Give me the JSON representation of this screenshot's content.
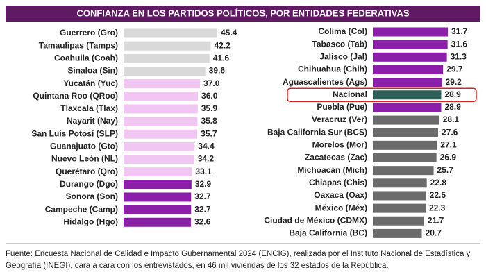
{
  "title": "CONFIANZA EN LOS PARTIDOS POLÍTICOS, POR ENTIDADES FEDERATIVAS",
  "source": "Fuente: Encuesta Nacional de Calidad e Impacto Gubernamental 2024 (ENCIG), realizada por el Instituto Nacional de Estadística y Geografía (INEGI), cara a cara con los entrevistados, en 46 mil viviendas de los 32 estados de la República.",
  "chart_data": [
    {
      "type": "hbar",
      "categories": [
        "Guerrero (Gro)",
        "Tamaulipas (Tamps)",
        "Coahuila (Coah)",
        "Sinaloa (Sin)",
        "Yucatán (Yuc)",
        "Quintana Roo (QRoo)",
        "Tlaxcala (Tlax)",
        "Nayarit (Nay)",
        "San Luis Potosí (SLP)",
        "Guanajuato (Gto)",
        "Nuevo León (NL)",
        "Querétaro (Qro)",
        "Durango (Dgo)",
        "Sonora (Son)",
        "Campeche (Camp)",
        "Hidalgo (Hgo)"
      ],
      "values": [
        45.4,
        42.2,
        41.6,
        39.6,
        37.0,
        36.0,
        35.9,
        35.8,
        35.7,
        34.4,
        34.2,
        33.1,
        32.9,
        32.7,
        32.7,
        32.6
      ],
      "value_labels": [
        "45.4",
        "42.2",
        "41.6",
        "39.6",
        "37.0",
        "36.0",
        "35.9",
        "35.8",
        "35.7",
        "34.4",
        "34.2",
        "33.1",
        "32.9",
        "32.7",
        "32.7",
        "32.6"
      ],
      "colors": [
        "#d9d9d9",
        "#d9d9d9",
        "#d9d9d9",
        "#d9d9d9",
        "#f2c6f2",
        "#f2c6f2",
        "#f2c6f2",
        "#f2c6f2",
        "#f2c6f2",
        "#f2c6f2",
        "#f2c6f2",
        "#f2c6f2",
        "#8b1fa9",
        "#8b1fa9",
        "#8b1fa9",
        "#8b1fa9"
      ]
    },
    {
      "type": "hbar",
      "categories": [
        "Colima (Col)",
        "Tabasco (Tab)",
        "Jalisco (Jal)",
        "Chihuahua (Chih)",
        "Aguascalientes (Ags)",
        "Nacional",
        "Puebla (Pue)",
        "Veracruz (Ver)",
        "Baja California Sur (BCS)",
        "Morelos (Mor)",
        "Zacatecas (Zac)",
        "Michoacán (Mich)",
        "Chiapas (Chis)",
        "Oaxaca (Oax)",
        "México (Méx)",
        "Ciudad de México (CDMX)",
        "Baja California (BC)"
      ],
      "values": [
        31.7,
        31.6,
        31.3,
        29.7,
        29.2,
        28.9,
        28.9,
        28.1,
        27.6,
        27.1,
        26.9,
        25.7,
        22.8,
        22.5,
        22.3,
        21.7,
        20.7
      ],
      "value_labels": [
        "31.7",
        "31.6",
        "31.3",
        "29.7",
        "29.2",
        "28.9",
        "28.9",
        "28.1",
        "27.6",
        "27.1",
        "26.9",
        "25.7",
        "22.8",
        "22.5",
        "22.3",
        "21.7",
        "20.7"
      ],
      "colors": [
        "#8b1fa9",
        "#8b1fa9",
        "#8b1fa9",
        "#8b1fa9",
        "#8b1fa9",
        "#2e5e58",
        "#8b1fa9",
        "#6b6b6b",
        "#6b6b6b",
        "#6b6b6b",
        "#6b6b6b",
        "#6b6b6b",
        "#6b6b6b",
        "#6b6b6b",
        "#6b6b6b",
        "#6b6b6b",
        "#6b6b6b"
      ],
      "highlight_index": 5
    }
  ]
}
